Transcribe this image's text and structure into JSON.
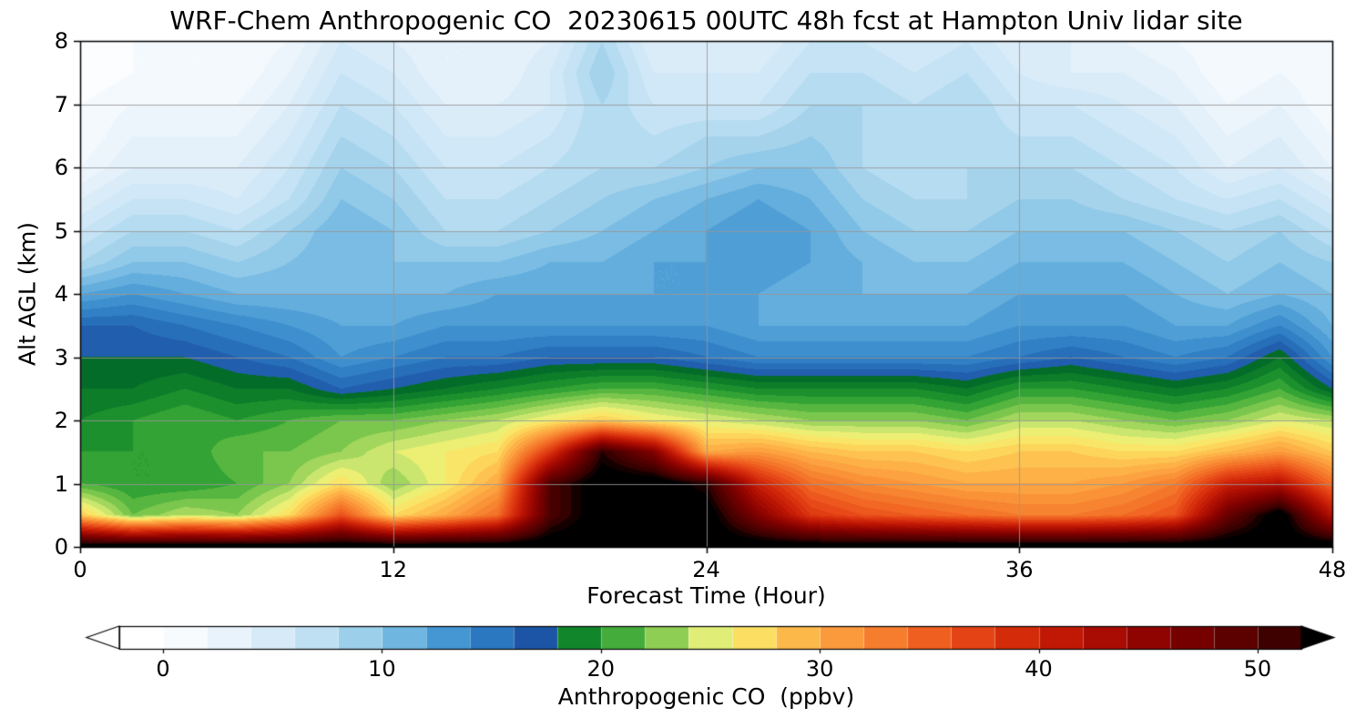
{
  "chart_data": {
    "type": "heatmap",
    "title": "WRF-Chem Anthropogenic CO  20230615 00UTC 48h fcst at Hampton Univ lidar site",
    "xlabel": "Forecast Time (Hour)",
    "ylabel": "Alt AGL (km)",
    "colorbar_label": "Anthropogenic CO  (ppbv)",
    "x_unit": "hour",
    "y_unit": "km",
    "value_unit": "ppbv",
    "x_range": [
      0,
      48
    ],
    "y_range": [
      0,
      8
    ],
    "xticks": [
      0,
      12,
      24,
      36,
      48
    ],
    "yticks": [
      0,
      1,
      2,
      3,
      4,
      5,
      6,
      7,
      8
    ],
    "colorbar_ticks": [
      0,
      10,
      20,
      30,
      40,
      50
    ],
    "colorbar_range": [
      -2,
      52
    ],
    "colorbar_extend": "both",
    "levels_step": 2,
    "grid": true,
    "x_hours": [
      0,
      2,
      4,
      6,
      8,
      10,
      12,
      14,
      16,
      18,
      20,
      22,
      24,
      26,
      28,
      30,
      32,
      34,
      36,
      38,
      40,
      42,
      44,
      46,
      48
    ],
    "alt_km": [
      0,
      0.5,
      1,
      1.5,
      2,
      2.5,
      3,
      3.5,
      4,
      4.5,
      5,
      5.5,
      6,
      6.5,
      7,
      7.5,
      8
    ],
    "values_ppbv": [
      [
        55,
        55,
        55,
        55,
        55,
        55,
        55,
        55,
        55,
        55,
        55,
        55,
        55,
        55,
        55,
        55,
        55,
        55,
        55,
        55,
        55,
        55,
        55,
        55,
        55
      ],
      [
        28,
        22,
        24,
        23,
        27,
        36,
        27,
        30,
        34,
        50,
        55,
        55,
        55,
        46,
        38,
        36,
        35,
        34,
        33,
        33,
        34,
        36,
        48,
        55,
        42
      ],
      [
        21,
        20,
        20,
        21,
        23,
        27,
        23,
        26,
        30,
        50,
        55,
        55,
        52,
        40,
        34,
        32,
        31,
        30,
        30,
        30,
        31,
        33,
        40,
        42,
        34
      ],
      [
        20,
        20,
        20,
        22,
        22,
        23,
        25,
        26,
        27,
        38,
        52,
        46,
        30,
        31,
        29,
        28,
        28,
        27,
        28,
        28,
        27,
        27,
        29,
        31,
        28
      ],
      [
        19,
        20,
        21,
        20,
        21,
        22,
        22,
        23,
        24,
        26,
        28,
        26,
        25,
        24,
        23,
        23,
        23,
        22,
        24,
        24,
        23,
        22,
        23,
        25,
        24
      ],
      [
        18,
        18,
        19,
        18,
        18,
        16,
        17,
        18,
        19,
        20,
        21,
        21,
        20,
        19,
        19,
        19,
        19,
        18,
        20,
        20,
        19,
        18,
        19,
        21,
        17
      ],
      [
        17,
        17,
        17,
        16,
        15,
        13,
        14,
        15,
        15,
        16,
        16,
        16,
        15,
        14,
        14,
        14,
        14,
        14,
        15,
        16,
        15,
        14,
        15,
        18,
        13
      ],
      [
        16,
        16,
        15,
        14,
        13,
        12,
        12,
        13,
        13,
        13,
        13,
        13,
        13,
        12,
        12,
        12,
        12,
        12,
        13,
        13,
        13,
        12,
        12,
        14,
        11
      ],
      [
        12,
        13,
        12,
        11,
        11,
        11,
        11,
        11,
        12,
        12,
        12,
        12,
        12,
        12,
        11,
        11,
        11,
        11,
        12,
        12,
        12,
        11,
        10,
        11,
        10
      ],
      [
        8,
        10,
        10,
        9,
        10,
        11,
        10,
        10,
        10,
        11,
        11,
        12,
        12,
        13,
        12,
        11,
        10,
        10,
        11,
        11,
        11,
        10,
        9,
        10,
        9
      ],
      [
        6,
        8,
        8,
        7,
        9,
        11,
        10,
        8,
        8,
        9,
        10,
        11,
        12,
        13,
        12,
        10,
        9,
        9,
        10,
        10,
        10,
        9,
        8,
        9,
        7
      ],
      [
        4,
        6,
        6,
        5,
        7,
        10,
        9,
        7,
        7,
        8,
        9,
        10,
        11,
        12,
        11,
        9,
        8,
        8,
        9,
        9,
        8,
        7,
        6,
        7,
        5
      ],
      [
        2,
        4,
        4,
        4,
        6,
        9,
        8,
        6,
        6,
        7,
        8,
        8,
        9,
        10,
        10,
        8,
        7,
        8,
        8,
        8,
        7,
        6,
        4,
        5,
        3
      ],
      [
        1,
        3,
        3,
        3,
        5,
        8,
        7,
        5,
        5,
        6,
        8,
        7,
        8,
        8,
        9,
        8,
        7,
        8,
        7,
        7,
        6,
        5,
        3,
        4,
        2
      ],
      [
        1,
        2,
        2,
        2,
        4,
        7,
        6,
        4,
        4,
        5,
        8,
        6,
        6,
        6,
        8,
        8,
        7,
        8,
        6,
        6,
        5,
        4,
        2,
        3,
        1
      ],
      [
        0,
        1,
        1,
        1,
        3,
        6,
        5,
        3,
        3,
        5,
        9,
        5,
        5,
        5,
        7,
        7,
        6,
        7,
        5,
        4,
        4,
        3,
        1,
        2,
        1
      ],
      [
        0,
        1,
        1,
        1,
        2,
        5,
        4,
        3,
        3,
        4,
        8,
        4,
        4,
        4,
        6,
        6,
        5,
        6,
        4,
        4,
        3,
        2,
        1,
        2,
        1
      ]
    ],
    "colormap_stops": [
      [
        0,
        "#ffffff"
      ],
      [
        1,
        "#f7fbfe"
      ],
      [
        3,
        "#e8f3fb"
      ],
      [
        5,
        "#d6eaf8"
      ],
      [
        7,
        "#bfe0f3"
      ],
      [
        9,
        "#9ccfea"
      ],
      [
        11,
        "#6fb6e0"
      ],
      [
        13,
        "#4497d3"
      ],
      [
        15,
        "#2b77c0"
      ],
      [
        17,
        "#1d55a6"
      ],
      [
        17.05,
        "#006428"
      ],
      [
        19,
        "#12862b"
      ],
      [
        20.5,
        "#33a335"
      ],
      [
        22,
        "#67bf45"
      ],
      [
        23.5,
        "#a2d65c"
      ],
      [
        25,
        "#e0ee78"
      ],
      [
        26,
        "#f7ef6f"
      ],
      [
        27.5,
        "#fdd55b"
      ],
      [
        29,
        "#fdb84a"
      ],
      [
        31,
        "#fb9a3c"
      ],
      [
        33,
        "#f67d2d"
      ],
      [
        35,
        "#ef5f20"
      ],
      [
        37,
        "#e44315"
      ],
      [
        39,
        "#d42b0b"
      ],
      [
        41,
        "#c01805"
      ],
      [
        43,
        "#a80c02"
      ],
      [
        45,
        "#8f0400"
      ],
      [
        47,
        "#760000"
      ],
      [
        49,
        "#5c0000"
      ],
      [
        51,
        "#3f0000"
      ],
      [
        52,
        "#2a0000"
      ],
      [
        53,
        "#000000"
      ]
    ],
    "under_color": "#ffffff",
    "over_color": "#000000",
    "grid_color": "#969696"
  }
}
